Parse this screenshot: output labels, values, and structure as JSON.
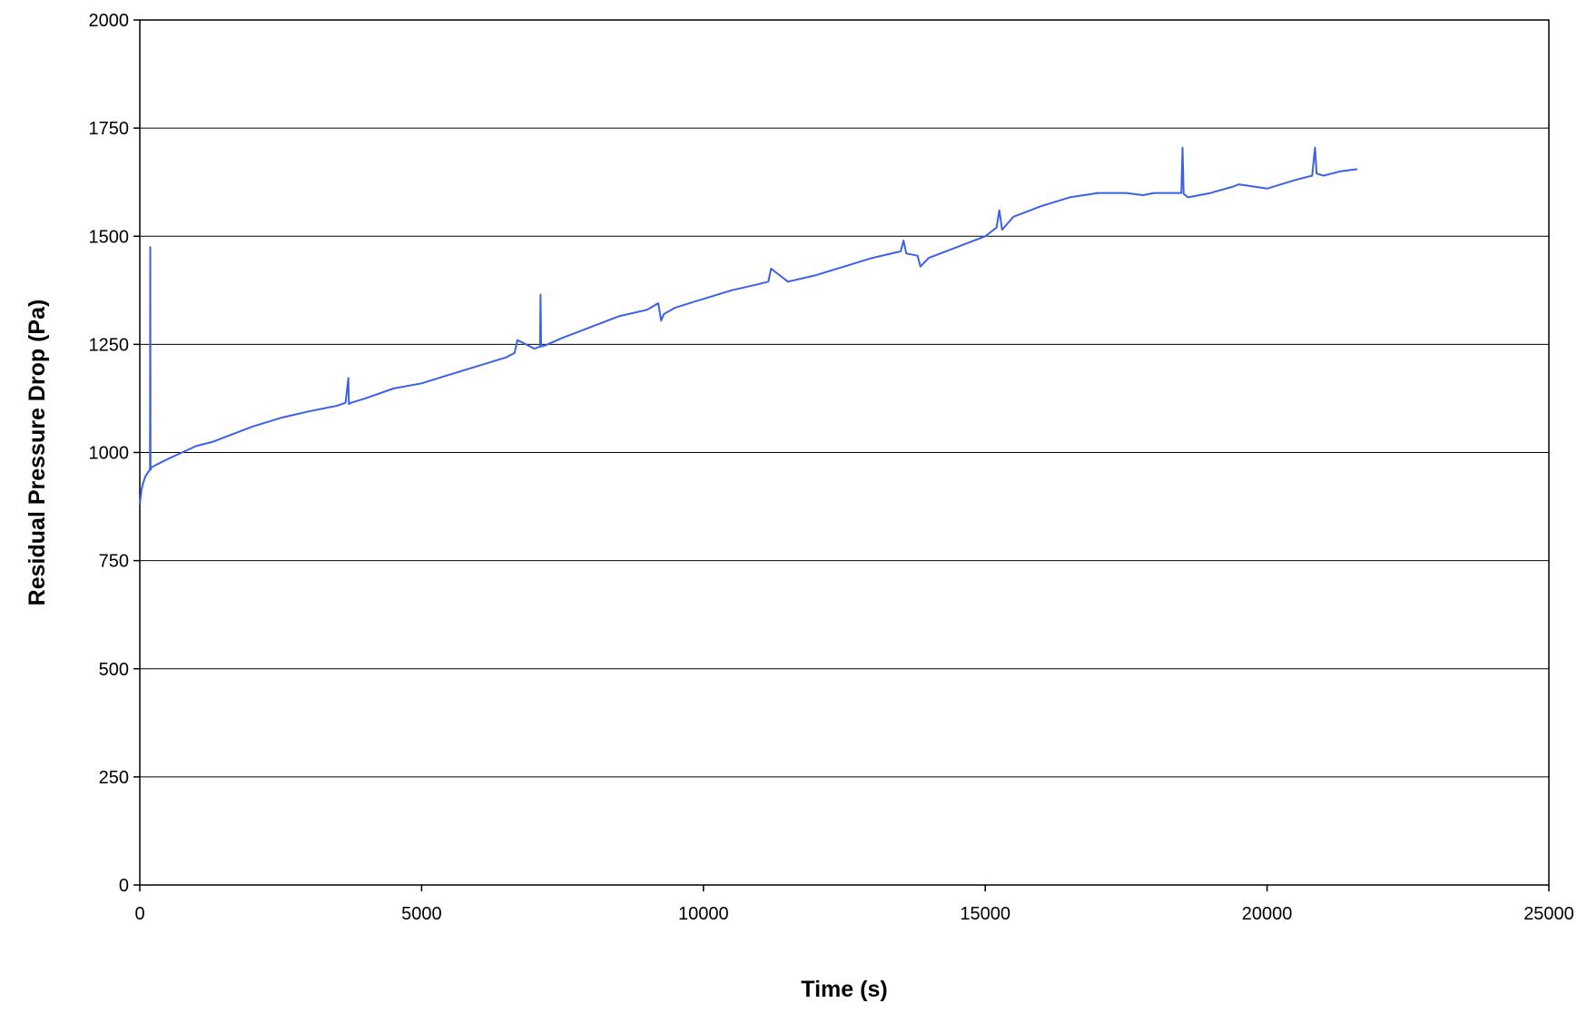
{
  "chart_data": {
    "type": "line",
    "title": "",
    "xlabel": "Time (s)",
    "ylabel": "Residual Pressure Drop (Pa)",
    "xlim": [
      0,
      25000
    ],
    "ylim": [
      0,
      2000
    ],
    "x_ticks": [
      "0",
      "5000",
      "10000",
      "15000",
      "20000",
      "25000"
    ],
    "y_ticks": [
      "0",
      "250",
      "500",
      "750",
      "1000",
      "1250",
      "1500",
      "1750",
      "2000"
    ],
    "grid": "horizontal",
    "legend": "none",
    "colors": {
      "line": "#3b61e6",
      "grid": "#000000",
      "frame": "#000000"
    },
    "series": [
      {
        "x": [
          0,
          30,
          60,
          100,
          150,
          180,
          185,
          190,
          195,
          200,
          300,
          500,
          700,
          1000,
          1300,
          1600,
          2000,
          2500,
          3000,
          3500,
          3650,
          3700,
          3710,
          3750,
          4000,
          4500,
          5000,
          5500,
          6000,
          6500,
          6650,
          6700,
          7000,
          7100,
          7110,
          7120,
          7200,
          7500,
          8000,
          8500,
          9000,
          9200,
          9250,
          9300,
          9500,
          10000,
          10500,
          11000,
          11150,
          11200,
          11500,
          12000,
          12500,
          13000,
          13500,
          13550,
          13600,
          13800,
          13850,
          14000,
          14500,
          15000,
          15200,
          15250,
          15300,
          15500,
          16000,
          16500,
          17000,
          17500,
          17800,
          18000,
          18400,
          18480,
          18500,
          18520,
          18600,
          19000,
          19400,
          19500,
          20000,
          20500,
          20800,
          20850,
          20880,
          21000,
          21300,
          21600
        ],
        "y": [
          880,
          915,
          930,
          945,
          955,
          960,
          1475,
          960,
          962,
          965,
          972,
          985,
          997,
          1015,
          1025,
          1040,
          1060,
          1080,
          1095,
          1108,
          1115,
          1172,
          1112,
          1115,
          1125,
          1148,
          1160,
          1180,
          1200,
          1220,
          1230,
          1260,
          1240,
          1245,
          1365,
          1245,
          1248,
          1265,
          1290,
          1315,
          1330,
          1345,
          1305,
          1320,
          1335,
          1355,
          1375,
          1390,
          1395,
          1425,
          1395,
          1410,
          1430,
          1450,
          1465,
          1490,
          1460,
          1455,
          1430,
          1450,
          1475,
          1500,
          1520,
          1560,
          1515,
          1545,
          1570,
          1590,
          1600,
          1600,
          1595,
          1600,
          1600,
          1600,
          1705,
          1598,
          1590,
          1600,
          1615,
          1620,
          1610,
          1630,
          1640,
          1705,
          1645,
          1640,
          1650,
          1655
        ]
      }
    ]
  }
}
